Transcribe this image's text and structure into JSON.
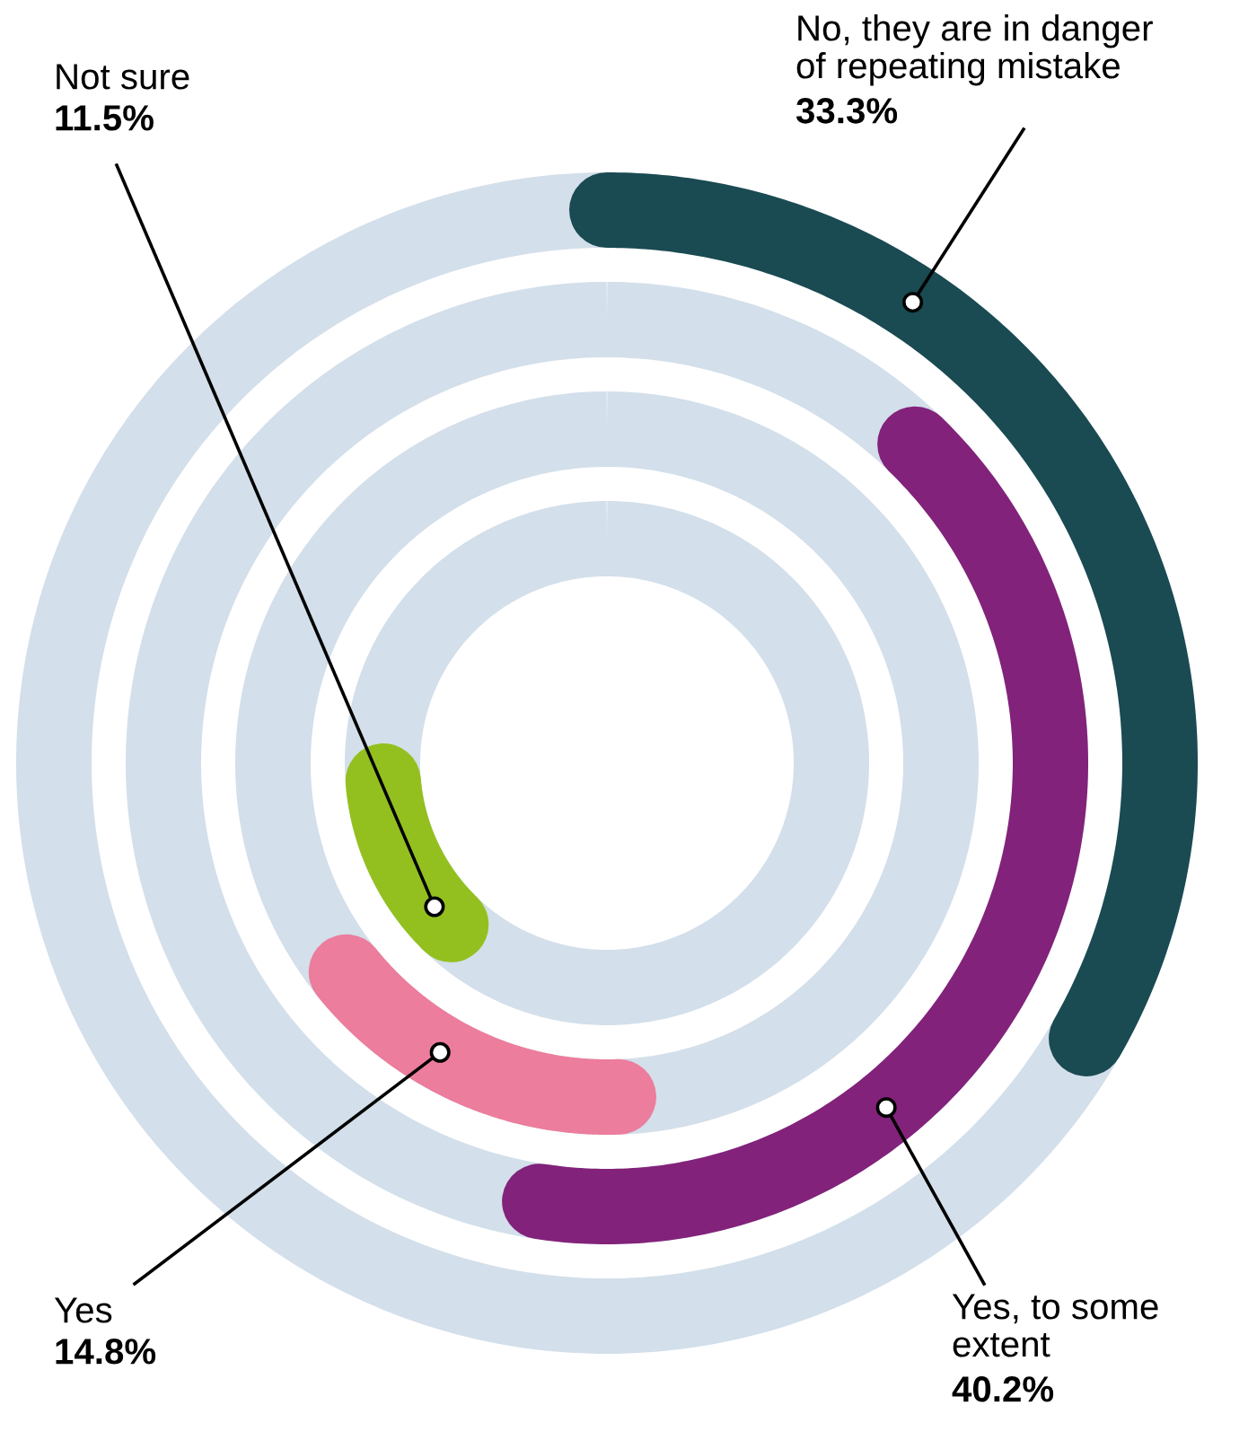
{
  "chart_data": {
    "type": "other",
    "categories": [
      "No, they are in danger\nof repeating mistake",
      "Yes, to some\nextent",
      "Yes",
      "Not sure"
    ],
    "values": [
      33.3,
      40.2,
      14.8,
      11.5
    ],
    "value_labels": [
      "33.3%",
      "40.2%",
      "14.8%",
      "11.5%"
    ],
    "colors": [
      "#1a4a52",
      "#82227a",
      "#ec7d9c",
      "#93c01f"
    ]
  }
}
